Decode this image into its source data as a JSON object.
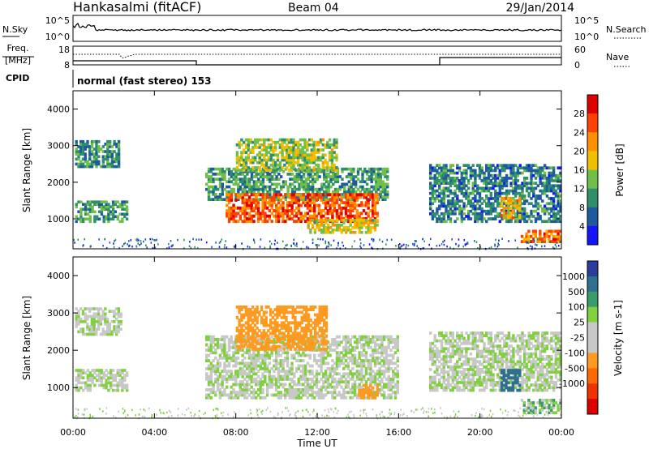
{
  "header": {
    "station": "Hankasalmi (fitACF)",
    "beam": "Beam 04",
    "date": "29/Jan/2014"
  },
  "noise_panel": {
    "left_label": "N.Sky",
    "right_label": "N.Search",
    "left_ticks": [
      "10^5",
      "10^0"
    ],
    "right_ticks": [
      "10^5",
      "10^0"
    ]
  },
  "freq_panel": {
    "left_label_1": "Freq.",
    "left_label_2": "[MHz]",
    "right_label": "Nave",
    "left_ticks": [
      "18",
      "8"
    ],
    "right_ticks": [
      "60",
      "0"
    ]
  },
  "cpid": {
    "label": "CPID",
    "text": "normal (fast stereo) 153"
  },
  "colors": {
    "power_scale": [
      "#1414ff",
      "#1e5aa0",
      "#2f8f6b",
      "#6fbf4a",
      "#f0c000",
      "#ff9000",
      "#ff4000",
      "#e00000"
    ],
    "velocity_scale": [
      "#2a3c9c",
      "#2f6f8f",
      "#3a9c6a",
      "#80d040",
      "#c8c8c8",
      "#c8c8c8",
      "#ff9a20",
      "#ff6a00",
      "#ee3300",
      "#dd0000"
    ]
  },
  "chart_data": [
    {
      "type": "heatmap",
      "name": "power",
      "xlabel": "",
      "ylabel": "Slant Range [km]",
      "xlim": [
        "00:00",
        "00:00"
      ],
      "ylim": [
        180,
        4500
      ],
      "xticks": [
        "00:00",
        "04:00",
        "08:00",
        "12:00",
        "16:00",
        "20:00",
        "00:00"
      ],
      "yticks": [
        1000,
        2000,
        3000,
        4000
      ],
      "colorbar": {
        "label": "Power [dB]",
        "ticks": [
          "4",
          "8",
          "12",
          "16",
          "20",
          "24",
          "28"
        ],
        "range": [
          0,
          30
        ]
      },
      "features": [
        {
          "t_start": 0.1,
          "t_end": 2.3,
          "r_start": 2400,
          "r_end": 3150,
          "level": 9
        },
        {
          "t_start": 0.1,
          "t_end": 2.7,
          "r_start": 900,
          "r_end": 1500,
          "level": 10
        },
        {
          "t_start": 6.5,
          "t_end": 15.5,
          "r_start": 1500,
          "r_end": 2400,
          "level": 10
        },
        {
          "t_start": 7.5,
          "t_end": 15.0,
          "r_start": 900,
          "r_end": 1700,
          "level": 24
        },
        {
          "t_start": 8.0,
          "t_end": 13.0,
          "r_start": 2300,
          "r_end": 3200,
          "level": 14
        },
        {
          "t_start": 11.5,
          "t_end": 15.0,
          "r_start": 600,
          "r_end": 1000,
          "level": 16
        },
        {
          "t_start": 17.5,
          "t_end": 24.0,
          "r_start": 900,
          "r_end": 2500,
          "level": 8
        },
        {
          "t_start": 21.0,
          "t_end": 22.0,
          "r_start": 1000,
          "r_end": 1600,
          "level": 18
        },
        {
          "t_start": 22.0,
          "t_end": 24.0,
          "r_start": 350,
          "r_end": 700,
          "level": 22
        }
      ]
    },
    {
      "type": "heatmap",
      "name": "velocity",
      "xlabel": "Time UT",
      "ylabel": "Slant Range [km]",
      "xlim": [
        "00:00",
        "00:00"
      ],
      "ylim": [
        180,
        4500
      ],
      "xticks": [
        "00:00",
        "04:00",
        "08:00",
        "12:00",
        "16:00",
        "20:00",
        "00:00"
      ],
      "yticks": [
        1000,
        2000,
        3000,
        4000
      ],
      "colorbar": {
        "label": "Velocity [m s-1]",
        "ticks": [
          "1000",
          "500",
          "100",
          "25",
          "-25",
          "-100",
          "-500",
          "-1000"
        ]
      },
      "features": [
        {
          "t_start": 0.1,
          "t_end": 2.4,
          "r_start": 2400,
          "r_end": 3150,
          "velocity": 0
        },
        {
          "t_start": 0.1,
          "t_end": 2.7,
          "r_start": 900,
          "r_end": 1500,
          "velocity": 0
        },
        {
          "t_start": 6.5,
          "t_end": 16.0,
          "r_start": 700,
          "r_end": 2400,
          "velocity": 0
        },
        {
          "t_start": 8.0,
          "t_end": 12.5,
          "r_start": 2000,
          "r_end": 3200,
          "velocity": -300
        },
        {
          "t_start": 14.0,
          "t_end": 15.0,
          "r_start": 700,
          "r_end": 1100,
          "velocity": -300
        },
        {
          "t_start": 17.5,
          "t_end": 24.0,
          "r_start": 900,
          "r_end": 2500,
          "velocity": 0
        },
        {
          "t_start": 21.0,
          "t_end": 22.0,
          "r_start": 900,
          "r_end": 1500,
          "velocity": 700
        },
        {
          "t_start": 22.0,
          "t_end": 24.0,
          "r_start": 300,
          "r_end": 700,
          "velocity": 60
        }
      ]
    }
  ]
}
